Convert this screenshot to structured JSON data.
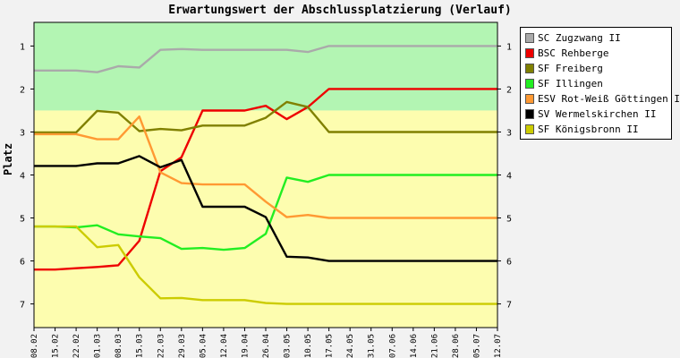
{
  "chart_data": {
    "type": "line",
    "title": "Erwartungswert der Abschlussplatzierung (Verlauf)",
    "ylabel": "Platz",
    "xlabel": "",
    "x": [
      "08.02",
      "15.02",
      "22.02",
      "01.03",
      "08.03",
      "15.03",
      "22.03",
      "29.03",
      "05.04",
      "12.04",
      "19.04",
      "26.04",
      "03.05",
      "10.05",
      "17.05",
      "24.05",
      "31.05",
      "07.06",
      "14.06",
      "21.06",
      "28.06",
      "05.07",
      "12.07"
    ],
    "ylim": [
      0.45,
      7.55
    ],
    "y_ticks": [
      1,
      2,
      3,
      4,
      5,
      6,
      7
    ],
    "y_inverted": true,
    "grid": false,
    "legend_position": "right",
    "bands": [
      {
        "from": 0.45,
        "to": 2.5,
        "color": "#b3f5b3"
      },
      {
        "from": 2.5,
        "to": 7.55,
        "color": "#fdfdaf"
      }
    ],
    "series": [
      {
        "name": "SC Zugzwang II",
        "color": "#aaaaaa",
        "points": [
          [
            0,
            1.57
          ],
          [
            1,
            1.57
          ],
          [
            2,
            1.57
          ],
          [
            3,
            1.61
          ],
          [
            4,
            1.47
          ],
          [
            5,
            1.5
          ],
          [
            6,
            1.09
          ],
          [
            7,
            1.07
          ],
          [
            8,
            1.09
          ],
          [
            9,
            1.09
          ],
          [
            10,
            1.09
          ],
          [
            11,
            1.09
          ],
          [
            12,
            1.09
          ],
          [
            13,
            1.14
          ],
          [
            14,
            1.0
          ],
          [
            22,
            1.0
          ]
        ]
      },
      {
        "name": "BSC Rehberge",
        "color": "#ee0000",
        "points": [
          [
            0,
            6.2
          ],
          [
            1,
            6.2
          ],
          [
            2,
            6.17
          ],
          [
            3,
            6.14
          ],
          [
            4,
            6.1
          ],
          [
            5,
            5.53
          ],
          [
            6,
            3.91
          ],
          [
            7,
            3.59
          ],
          [
            8,
            2.5
          ],
          [
            9,
            2.5
          ],
          [
            10,
            2.5
          ],
          [
            11,
            2.39
          ],
          [
            12,
            2.7
          ],
          [
            13,
            2.42
          ],
          [
            14,
            2.0
          ],
          [
            22,
            2.0
          ]
        ]
      },
      {
        "name": "SF Freiberg",
        "color": "#808000",
        "points": [
          [
            0,
            3.01
          ],
          [
            1,
            3.01
          ],
          [
            2,
            3.01
          ],
          [
            3,
            2.51
          ],
          [
            4,
            2.55
          ],
          [
            5,
            2.98
          ],
          [
            6,
            2.93
          ],
          [
            7,
            2.96
          ],
          [
            8,
            2.85
          ],
          [
            9,
            2.85
          ],
          [
            10,
            2.85
          ],
          [
            11,
            2.67
          ],
          [
            12,
            2.3
          ],
          [
            13,
            2.42
          ],
          [
            14,
            3.0
          ],
          [
            22,
            3.0
          ]
        ]
      },
      {
        "name": "SF Illingen",
        "color": "#22ee22",
        "points": [
          [
            0,
            5.2
          ],
          [
            1,
            5.2
          ],
          [
            2,
            5.22
          ],
          [
            3,
            5.17
          ],
          [
            4,
            5.38
          ],
          [
            5,
            5.43
          ],
          [
            6,
            5.47
          ],
          [
            7,
            5.72
          ],
          [
            8,
            5.7
          ],
          [
            9,
            5.74
          ],
          [
            10,
            5.7
          ],
          [
            11,
            5.37
          ],
          [
            12,
            4.06
          ],
          [
            13,
            4.16
          ],
          [
            14,
            4.0
          ],
          [
            22,
            4.0
          ]
        ]
      },
      {
        "name": "ESV Rot-Weiß Göttingen II",
        "color": "#ff9933",
        "points": [
          [
            0,
            3.05
          ],
          [
            1,
            3.05
          ],
          [
            2,
            3.05
          ],
          [
            3,
            3.17
          ],
          [
            4,
            3.17
          ],
          [
            5,
            2.64
          ],
          [
            6,
            3.94
          ],
          [
            7,
            4.19
          ],
          [
            8,
            4.22
          ],
          [
            9,
            4.22
          ],
          [
            10,
            4.22
          ],
          [
            11,
            4.62
          ],
          [
            12,
            4.98
          ],
          [
            13,
            4.93
          ],
          [
            14,
            5.0
          ],
          [
            22,
            5.0
          ]
        ]
      },
      {
        "name": "SV Wermelskirchen II",
        "color": "#000000",
        "points": [
          [
            0,
            3.79
          ],
          [
            1,
            3.79
          ],
          [
            2,
            3.79
          ],
          [
            3,
            3.73
          ],
          [
            4,
            3.73
          ],
          [
            5,
            3.56
          ],
          [
            6,
            3.82
          ],
          [
            7,
            3.65
          ],
          [
            8,
            4.74
          ],
          [
            9,
            4.74
          ],
          [
            10,
            4.74
          ],
          [
            11,
            4.98
          ],
          [
            12,
            5.9
          ],
          [
            13,
            5.92
          ],
          [
            14,
            6.0
          ],
          [
            22,
            6.0
          ]
        ]
      },
      {
        "name": "SF Königsbronn II",
        "color": "#cccc00",
        "points": [
          [
            0,
            5.2
          ],
          [
            1,
            5.2
          ],
          [
            2,
            5.2
          ],
          [
            3,
            5.68
          ],
          [
            4,
            5.63
          ],
          [
            5,
            6.38
          ],
          [
            6,
            6.87
          ],
          [
            7,
            6.86
          ],
          [
            8,
            6.91
          ],
          [
            9,
            6.91
          ],
          [
            10,
            6.91
          ],
          [
            11,
            6.98
          ],
          [
            12,
            7.0
          ],
          [
            22,
            7.0
          ]
        ]
      }
    ]
  }
}
